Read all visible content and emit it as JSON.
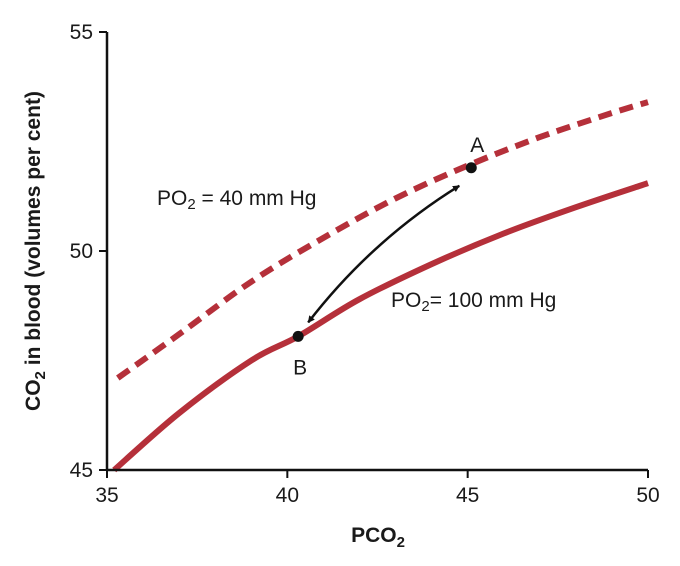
{
  "chart_data": {
    "type": "line",
    "title": "",
    "xlabel": {
      "main": "PCO",
      "sub": "2"
    },
    "ylabel": {
      "pre": "CO",
      "sub": "2",
      "post": " in blood (volumes per cent)"
    },
    "xlim": [
      35,
      50
    ],
    "ylim": [
      45,
      55
    ],
    "xticks": [
      "35",
      "40",
      "45",
      "50"
    ],
    "yticks": [
      "45",
      "50",
      "55"
    ],
    "grid": false,
    "series": [
      {
        "name": {
          "pre": "PO",
          "sub": "2",
          "post": " = 40 mm Hg"
        },
        "style": "dashed",
        "color": "#b5303a",
        "x": [
          35.3,
          37,
          39,
          41,
          43,
          45,
          47,
          49,
          50
        ],
        "y": [
          47.1,
          48.1,
          49.3,
          50.3,
          51.2,
          51.95,
          52.6,
          53.15,
          53.4
        ]
      },
      {
        "name": {
          "pre": "PO",
          "sub": "2",
          "post": "= 100 mm Hg"
        },
        "style": "solid",
        "color": "#b5303a",
        "x": [
          35.2,
          37,
          39,
          40.3,
          42,
          44,
          46,
          48,
          50
        ],
        "y": [
          45.0,
          46.3,
          47.5,
          48.05,
          48.9,
          49.7,
          50.4,
          51.0,
          51.55
        ]
      }
    ],
    "points": [
      {
        "label": "A",
        "x": 45.1,
        "y": 51.9
      },
      {
        "label": "B",
        "x": 40.3,
        "y": 48.05
      }
    ],
    "annotations": [
      {
        "type": "double-arrow",
        "from": "A",
        "to": "B"
      }
    ]
  }
}
